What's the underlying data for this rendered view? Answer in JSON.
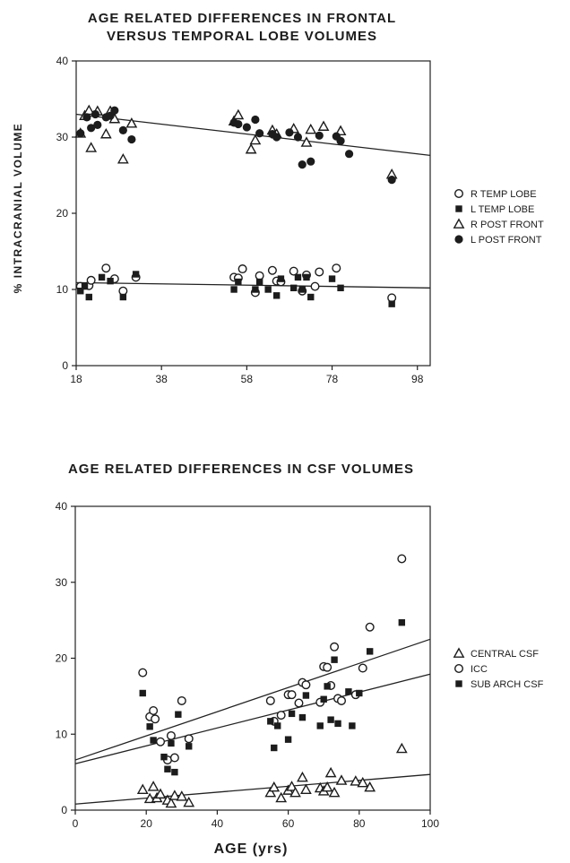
{
  "page": {
    "ylabel": "% INTRACRANIAL VOLUME",
    "xlabel": "AGE   (yrs)"
  },
  "chart_data": [
    {
      "type": "scatter",
      "title": "AGE RELATED DIFFERENCES IN FRONTAL VERSUS TEMPORAL LOBE VOLUMES",
      "title_lines": [
        "AGE RELATED DIFFERENCES IN FRONTAL",
        "VERSUS TEMPORAL LOBE VOLUMES"
      ],
      "xlim": [
        18,
        101
      ],
      "ylim": [
        0,
        40
      ],
      "xticks": [
        18,
        38,
        58,
        78,
        98
      ],
      "yticks": [
        0,
        10,
        20,
        30,
        40
      ],
      "xlabel": "",
      "ylabel": "% INTRACRANIAL VOLUME",
      "legend_position": "right",
      "series": [
        {
          "name": "R TEMP LOBE",
          "marker": "open-circle",
          "points": [
            [
              19,
              10.4
            ],
            [
              21,
              10.5
            ],
            [
              21.5,
              11.2
            ],
            [
              25,
              12.8
            ],
            [
              27,
              11.4
            ],
            [
              29,
              9.8
            ],
            [
              32,
              11.6
            ],
            [
              55,
              11.6
            ],
            [
              56,
              11.5
            ],
            [
              57,
              12.7
            ],
            [
              60,
              9.6
            ],
            [
              61,
              11.8
            ],
            [
              64,
              12.5
            ],
            [
              65,
              11.1
            ],
            [
              66,
              11.0
            ],
            [
              69,
              12.4
            ],
            [
              71,
              9.8
            ],
            [
              72,
              11.9
            ],
            [
              74,
              10.4
            ],
            [
              75,
              12.3
            ],
            [
              79,
              12.8
            ],
            [
              92,
              8.9
            ]
          ]
        },
        {
          "name": "L TEMP LOBE",
          "marker": "filled-square",
          "points": [
            [
              19,
              9.8
            ],
            [
              20,
              10.4
            ],
            [
              21,
              9.0
            ],
            [
              24,
              11.6
            ],
            [
              26,
              11.1
            ],
            [
              29,
              9.0
            ],
            [
              32,
              12.0
            ],
            [
              55,
              10.0
            ],
            [
              56,
              11.0
            ],
            [
              60,
              10.0
            ],
            [
              61,
              11.0
            ],
            [
              63,
              10.0
            ],
            [
              65,
              9.2
            ],
            [
              66,
              11.4
            ],
            [
              69,
              10.2
            ],
            [
              70,
              11.6
            ],
            [
              71,
              10.0
            ],
            [
              72,
              11.6
            ],
            [
              73,
              9.0
            ],
            [
              78,
              11.4
            ],
            [
              80,
              10.2
            ],
            [
              92,
              8.1
            ]
          ]
        },
        {
          "name": "R POST FRONT",
          "marker": "open-triangle",
          "points": [
            [
              19,
              30.5
            ],
            [
              20,
              32.8
            ],
            [
              21,
              33.5
            ],
            [
              21.5,
              28.6
            ],
            [
              23,
              33.4
            ],
            [
              25,
              30.4
            ],
            [
              26,
              33.4
            ],
            [
              27,
              32.4
            ],
            [
              29,
              27.1
            ],
            [
              31,
              31.8
            ],
            [
              55,
              32.1
            ],
            [
              56,
              32.9
            ],
            [
              59,
              28.4
            ],
            [
              60,
              29.6
            ],
            [
              64,
              30.9
            ],
            [
              65,
              30.4
            ],
            [
              69,
              31.1
            ],
            [
              72,
              29.3
            ],
            [
              73,
              31.0
            ],
            [
              76,
              31.4
            ],
            [
              80,
              30.8
            ],
            [
              92,
              25.1
            ]
          ]
        },
        {
          "name": "L POST FRONT",
          "marker": "filled-circle",
          "points": [
            [
              19,
              30.5
            ],
            [
              20.5,
              32.6
            ],
            [
              21.5,
              31.2
            ],
            [
              22.5,
              33.0
            ],
            [
              23,
              31.6
            ],
            [
              25,
              32.6
            ],
            [
              26,
              32.8
            ],
            [
              27,
              33.5
            ],
            [
              29,
              30.9
            ],
            [
              31,
              29.7
            ],
            [
              55,
              31.9
            ],
            [
              56,
              31.7
            ],
            [
              58,
              31.3
            ],
            [
              60,
              32.3
            ],
            [
              61,
              30.5
            ],
            [
              64,
              30.4
            ],
            [
              65,
              30.0
            ],
            [
              68,
              30.6
            ],
            [
              70,
              30.0
            ],
            [
              71,
              26.4
            ],
            [
              73,
              26.8
            ],
            [
              75,
              30.2
            ],
            [
              79,
              30.1
            ],
            [
              80,
              29.5
            ],
            [
              82,
              27.8
            ],
            [
              92,
              24.4
            ]
          ]
        }
      ],
      "trendlines": [
        {
          "x": [
            18,
            101
          ],
          "y": [
            33.0,
            27.6
          ]
        },
        {
          "x": [
            18,
            101
          ],
          "y": [
            10.9,
            10.2
          ]
        }
      ]
    },
    {
      "type": "scatter",
      "title": "AGE RELATED DIFFERENCES IN CSF VOLUMES",
      "title_lines": [
        "AGE RELATED DIFFERENCES IN CSF VOLUMES"
      ],
      "xlim": [
        0,
        100
      ],
      "ylim": [
        0,
        40
      ],
      "xticks": [
        0,
        20,
        40,
        60,
        80,
        100
      ],
      "yticks": [
        0,
        10,
        20,
        30,
        40
      ],
      "xlabel": "AGE   (yrs)",
      "ylabel": "",
      "legend_position": "right",
      "series": [
        {
          "name": "CENTRAL CSF",
          "marker": "open-triangle",
          "points": [
            [
              19,
              2.7
            ],
            [
              21,
              1.5
            ],
            [
              22,
              3.1
            ],
            [
              23,
              1.6
            ],
            [
              24,
              2.1
            ],
            [
              26,
              1.3
            ],
            [
              27,
              0.9
            ],
            [
              28,
              1.9
            ],
            [
              30,
              1.8
            ],
            [
              32,
              1.0
            ],
            [
              55,
              2.3
            ],
            [
              56,
              3.0
            ],
            [
              58,
              1.6
            ],
            [
              60,
              2.6
            ],
            [
              61,
              3.1
            ],
            [
              62,
              2.3
            ],
            [
              64,
              4.3
            ],
            [
              65,
              2.7
            ],
            [
              69,
              2.9
            ],
            [
              70,
              2.5
            ],
            [
              71,
              3.0
            ],
            [
              72,
              4.9
            ],
            [
              73,
              2.3
            ],
            [
              75,
              3.9
            ],
            [
              79,
              3.8
            ],
            [
              81,
              3.6
            ],
            [
              83,
              3.0
            ],
            [
              92,
              8.1
            ]
          ]
        },
        {
          "name": "ICC",
          "marker": "open-circle",
          "points": [
            [
              19,
              18.1
            ],
            [
              21,
              12.3
            ],
            [
              22,
              13.1
            ],
            [
              22.5,
              12.0
            ],
            [
              24,
              9.0
            ],
            [
              26,
              6.6
            ],
            [
              27,
              9.8
            ],
            [
              28,
              6.9
            ],
            [
              30,
              14.4
            ],
            [
              32,
              9.4
            ],
            [
              55,
              14.4
            ],
            [
              56,
              11.7
            ],
            [
              58,
              12.5
            ],
            [
              60,
              15.2
            ],
            [
              61,
              15.2
            ],
            [
              63,
              14.1
            ],
            [
              64,
              16.8
            ],
            [
              65,
              16.5
            ],
            [
              69,
              14.2
            ],
            [
              70,
              18.9
            ],
            [
              71,
              18.8
            ],
            [
              72,
              16.4
            ],
            [
              73,
              21.5
            ],
            [
              74,
              14.7
            ],
            [
              75,
              14.4
            ],
            [
              79,
              15.2
            ],
            [
              81,
              18.7
            ],
            [
              83,
              24.1
            ],
            [
              92,
              33.1
            ]
          ]
        },
        {
          "name": "SUB ARCH CSF",
          "marker": "filled-square",
          "points": [
            [
              19,
              15.4
            ],
            [
              21,
              11.0
            ],
            [
              22,
              9.2
            ],
            [
              25,
              7.0
            ],
            [
              26,
              5.4
            ],
            [
              27,
              8.8
            ],
            [
              28,
              5.0
            ],
            [
              29,
              12.6
            ],
            [
              32,
              8.4
            ],
            [
              55,
              11.7
            ],
            [
              56,
              8.2
            ],
            [
              57,
              11.1
            ],
            [
              60,
              9.3
            ],
            [
              61,
              12.7
            ],
            [
              64,
              12.2
            ],
            [
              65,
              15.1
            ],
            [
              69,
              11.1
            ],
            [
              70,
              14.6
            ],
            [
              71,
              16.3
            ],
            [
              72,
              11.9
            ],
            [
              73,
              19.8
            ],
            [
              74,
              11.4
            ],
            [
              77,
              15.6
            ],
            [
              78,
              11.1
            ],
            [
              80,
              15.4
            ],
            [
              83,
              20.9
            ],
            [
              92,
              24.7
            ]
          ]
        }
      ],
      "trendlines": [
        {
          "x": [
            0,
            100
          ],
          "y": [
            6.6,
            22.5
          ]
        },
        {
          "x": [
            0,
            100
          ],
          "y": [
            6.1,
            17.9
          ]
        },
        {
          "x": [
            0,
            100
          ],
          "y": [
            0.8,
            4.7
          ]
        }
      ]
    }
  ]
}
